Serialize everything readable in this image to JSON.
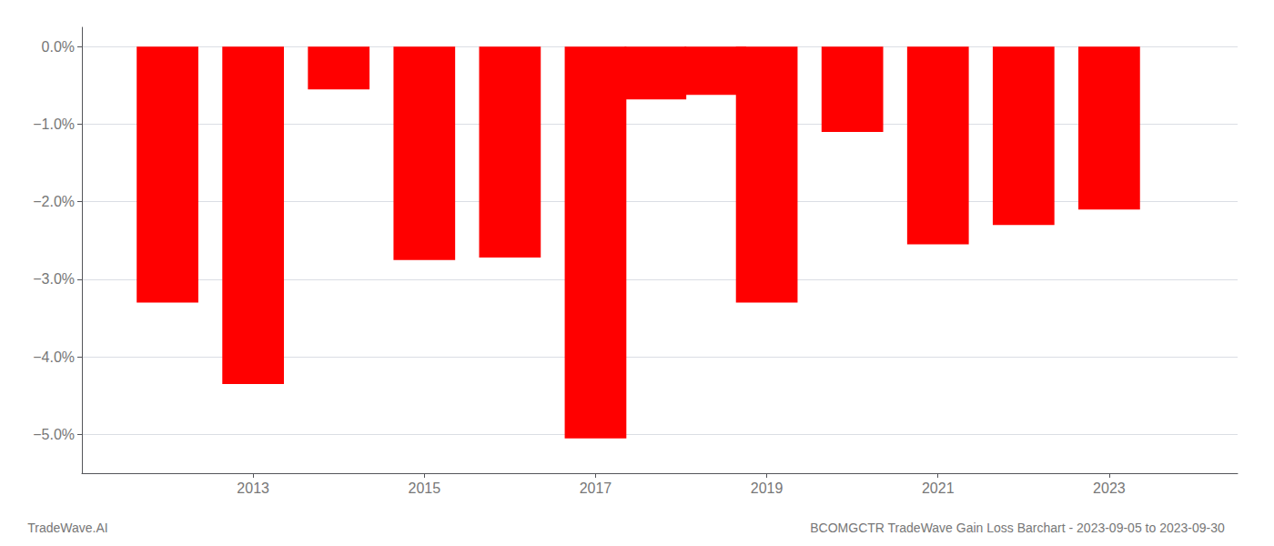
{
  "chart_data": {
    "type": "bar",
    "title": "BCOMGCTR TradeWave Gain Loss Barchart - 2023-09-05 to 2023-09-30",
    "annotations": [
      "TradeWave.AI"
    ],
    "x": [
      2012,
      2013,
      2014,
      2015,
      2016,
      2017,
      2017.7,
      2018.4,
      2019,
      2020,
      2021,
      2022,
      2023
    ],
    "values": [
      -3.3,
      -4.35,
      -0.55,
      -2.75,
      -2.72,
      -5.05,
      -0.68,
      -0.62,
      -3.3,
      -1.1,
      -2.55,
      -2.3,
      -2.1
    ],
    "color": "#ff0000",
    "xlim": [
      2011.0,
      2024.5
    ],
    "xticks": [
      {
        "value": 2013,
        "label": "2013"
      },
      {
        "value": 2015,
        "label": "2015"
      },
      {
        "value": 2017,
        "label": "2017"
      },
      {
        "value": 2019,
        "label": "2019"
      },
      {
        "value": 2021,
        "label": "2021"
      },
      {
        "value": 2023,
        "label": "2023"
      }
    ],
    "ylim": [
      -5.5,
      0.25
    ],
    "yticks": [
      {
        "value": 0.0,
        "label": "0.0%"
      },
      {
        "value": -1.0,
        "label": "−1.0%"
      },
      {
        "value": -2.0,
        "label": "−2.0%"
      },
      {
        "value": -3.0,
        "label": "−3.0%"
      },
      {
        "value": -4.0,
        "label": "−4.0%"
      },
      {
        "value": -5.0,
        "label": "−5.0%"
      }
    ],
    "grid": true
  }
}
